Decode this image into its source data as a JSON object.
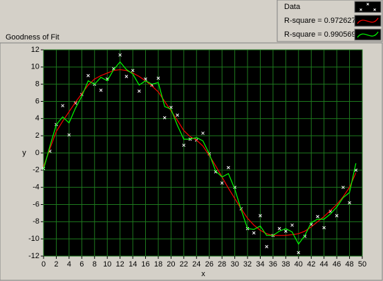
{
  "chart_data": {
    "type": "scatter",
    "title": "Goodness of Fit",
    "x_label": "x",
    "y_label": "y",
    "x": [
      0,
      1,
      2,
      3,
      4,
      5,
      6,
      7,
      8,
      9,
      10,
      11,
      12,
      13,
      14,
      15,
      16,
      17,
      18,
      19,
      20,
      21,
      22,
      23,
      24,
      25,
      26,
      27,
      28,
      29,
      30,
      31,
      32,
      33,
      34,
      35,
      36,
      37,
      38,
      39,
      40,
      41,
      42,
      43,
      44,
      45,
      46,
      47,
      48,
      49
    ],
    "series": [
      {
        "name": "Data",
        "color": "#ffffff",
        "mode": "markers",
        "values": [
          -1.8,
          0.2,
          3.3,
          5.5,
          2.1,
          5.8,
          6.8,
          9.0,
          8.0,
          7.3,
          8.6,
          9.8,
          11.4,
          8.9,
          9.6,
          7.2,
          8.6,
          7.9,
          8.7,
          4.1,
          5.3,
          4.4,
          0.9,
          1.6,
          1.5,
          2.3,
          -0.1,
          -2.2,
          -3.5,
          -1.7,
          -4.0,
          -6.5,
          -8.8,
          -9.3,
          -7.3,
          -10.9,
          -9.6,
          -8.8,
          -9.1,
          -8.4,
          -11.6,
          -9.7,
          -8.3,
          -7.4,
          -8.7,
          -6.8,
          -7.3,
          -4.0,
          -5.8,
          -2.0
        ]
      },
      {
        "name": "R-square = 0.972627",
        "color": "#ff0000",
        "mode": "line",
        "values": [
          -1.6,
          0.5,
          2.5,
          3.7,
          4.8,
          5.9,
          6.9,
          7.9,
          8.6,
          9.0,
          9.3,
          9.6,
          9.7,
          9.6,
          9.3,
          8.9,
          8.4,
          7.8,
          7.1,
          6.0,
          4.9,
          3.8,
          2.6,
          1.9,
          1.5,
          0.8,
          -0.3,
          -1.5,
          -2.8,
          -4.1,
          -5.3,
          -6.5,
          -7.6,
          -8.4,
          -9.0,
          -9.4,
          -9.6,
          -9.6,
          -9.6,
          -9.5,
          -9.4,
          -9.1,
          -8.6,
          -8.0,
          -7.4,
          -6.7,
          -6.0,
          -5.1,
          -4.0,
          -2.3
        ]
      },
      {
        "name": "R-square = 0.990569",
        "color": "#00ff00",
        "mode": "line",
        "values": [
          -1.9,
          0.8,
          3.3,
          4.2,
          3.5,
          5.2,
          6.6,
          8.4,
          8.0,
          8.8,
          8.4,
          9.7,
          10.6,
          9.7,
          9.2,
          7.9,
          8.4,
          8.0,
          8.2,
          5.4,
          5.1,
          3.2,
          1.6,
          1.6,
          1.8,
          1.4,
          -0.1,
          -2.1,
          -2.8,
          -2.4,
          -4.2,
          -6.6,
          -8.8,
          -8.9,
          -8.5,
          -9.6,
          -9.6,
          -9.1,
          -8.8,
          -9.2,
          -10.6,
          -9.6,
          -8.1,
          -7.7,
          -7.7,
          -7.1,
          -6.3,
          -5.2,
          -4.6,
          -1.2
        ]
      }
    ],
    "xlim": [
      0,
      50
    ],
    "ylim": [
      -12,
      12
    ],
    "xticks": [
      0,
      2,
      4,
      6,
      8,
      10,
      12,
      14,
      16,
      18,
      20,
      22,
      24,
      26,
      28,
      30,
      32,
      34,
      36,
      38,
      40,
      42,
      44,
      46,
      48,
      50
    ],
    "yticks": [
      -12,
      -10,
      -8,
      -6,
      -4,
      -2,
      0,
      2,
      4,
      6,
      8,
      10,
      12
    ],
    "grid": true,
    "grid_color": "#1e7a1e",
    "plot_background": "#000000",
    "legend": "top-right"
  }
}
